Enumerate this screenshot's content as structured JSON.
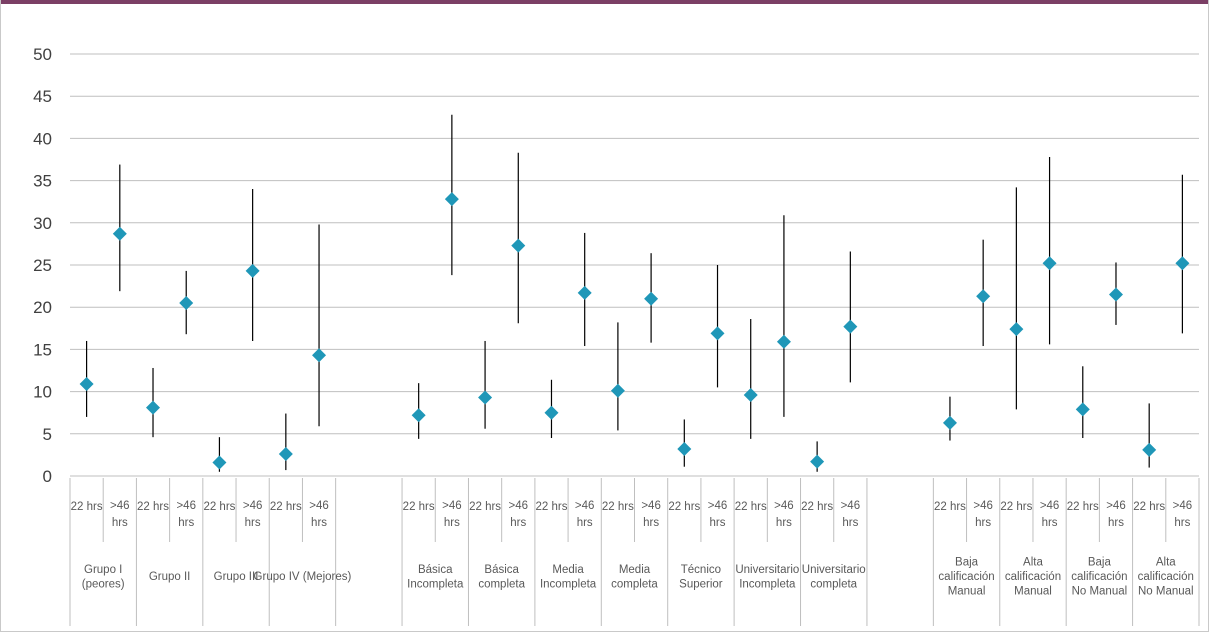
{
  "colors": {
    "marker": "#1f97b8",
    "bar": "#000000",
    "grid": "#bfbfbf",
    "top_bar": "#7b3f65"
  },
  "chart_data": {
    "type": "scatter",
    "marker_shape": "diamond",
    "error_bars": true,
    "grid": true,
    "ylim": [
      0,
      50
    ],
    "y_ticks": [
      "0",
      "5",
      "10",
      "15",
      "20",
      "25",
      "30",
      "35",
      "40",
      "45",
      "50"
    ],
    "categories": [
      {
        "label": [
          "Grupo I",
          "(peores)"
        ]
      },
      {
        "label": [
          "Grupo II"
        ]
      },
      {
        "label": [
          "Grupo III"
        ]
      },
      {
        "label": [
          "Grupo IV (Mejores)"
        ]
      },
      {
        "label": []
      },
      {
        "label": [
          "Básica",
          "Incompleta"
        ]
      },
      {
        "label": [
          "Básica",
          "completa"
        ]
      },
      {
        "label": [
          "Media",
          "Incompleta"
        ]
      },
      {
        "label": [
          "Media",
          "completa"
        ]
      },
      {
        "label": [
          "Técnico",
          "Superior"
        ]
      },
      {
        "label": [
          "Universitario",
          "Incompleta"
        ]
      },
      {
        "label": [
          "Universitario",
          "completa"
        ]
      },
      {
        "label": []
      },
      {
        "label": [
          "Baja",
          "calificación",
          "Manual"
        ]
      },
      {
        "label": [
          "Alta",
          "calificación",
          "Manual"
        ]
      },
      {
        "label": [
          "Baja",
          "calificación",
          "No Manual"
        ]
      },
      {
        "label": [
          "Alta",
          "calificación",
          "No Manual"
        ]
      }
    ],
    "sub_labels": [
      [
        "22 hrs"
      ],
      [
        ">46",
        "hrs"
      ]
    ],
    "points": [
      {
        "cat": 0,
        "sub": 0,
        "y": 10.9,
        "low": 7.0,
        "high": 16.0
      },
      {
        "cat": 0,
        "sub": 1,
        "y": 28.7,
        "low": 21.9,
        "high": 36.9
      },
      {
        "cat": 1,
        "sub": 0,
        "y": 8.1,
        "low": 4.6,
        "high": 12.8
      },
      {
        "cat": 1,
        "sub": 1,
        "y": 20.5,
        "low": 16.8,
        "high": 24.3
      },
      {
        "cat": 2,
        "sub": 0,
        "y": 1.6,
        "low": 0.5,
        "high": 4.6
      },
      {
        "cat": 2,
        "sub": 1,
        "y": 24.3,
        "low": 16.0,
        "high": 34.0
      },
      {
        "cat": 3,
        "sub": 0,
        "y": 2.6,
        "low": 0.7,
        "high": 7.4
      },
      {
        "cat": 3,
        "sub": 1,
        "y": 14.3,
        "low": 5.9,
        "high": 29.8
      },
      {
        "cat": 5,
        "sub": 0,
        "y": 7.2,
        "low": 4.4,
        "high": 11.0
      },
      {
        "cat": 5,
        "sub": 1,
        "y": 32.8,
        "low": 23.8,
        "high": 42.8
      },
      {
        "cat": 6,
        "sub": 0,
        "y": 9.3,
        "low": 5.6,
        "high": 16.0
      },
      {
        "cat": 6,
        "sub": 1,
        "y": 27.3,
        "low": 18.1,
        "high": 38.3
      },
      {
        "cat": 7,
        "sub": 0,
        "y": 7.5,
        "low": 4.5,
        "high": 11.4
      },
      {
        "cat": 7,
        "sub": 1,
        "y": 21.7,
        "low": 15.4,
        "high": 28.8
      },
      {
        "cat": 8,
        "sub": 0,
        "y": 10.1,
        "low": 5.4,
        "high": 18.2
      },
      {
        "cat": 8,
        "sub": 1,
        "y": 21.0,
        "low": 15.8,
        "high": 26.4
      },
      {
        "cat": 9,
        "sub": 0,
        "y": 3.2,
        "low": 1.1,
        "high": 6.7
      },
      {
        "cat": 9,
        "sub": 1,
        "y": 16.9,
        "low": 10.5,
        "high": 25.0
      },
      {
        "cat": 10,
        "sub": 0,
        "y": 9.6,
        "low": 4.4,
        "high": 18.6
      },
      {
        "cat": 10,
        "sub": 1,
        "y": 15.9,
        "low": 7.0,
        "high": 30.9
      },
      {
        "cat": 11,
        "sub": 0,
        "y": 1.7,
        "low": 0.5,
        "high": 4.1
      },
      {
        "cat": 11,
        "sub": 1,
        "y": 17.7,
        "low": 11.1,
        "high": 26.6
      },
      {
        "cat": 13,
        "sub": 0,
        "y": 6.3,
        "low": 4.2,
        "high": 9.4
      },
      {
        "cat": 13,
        "sub": 1,
        "y": 21.3,
        "low": 15.4,
        "high": 28.0
      },
      {
        "cat": 14,
        "sub": 0,
        "y": 17.4,
        "low": 7.9,
        "high": 34.2
      },
      {
        "cat": 14,
        "sub": 1,
        "y": 25.2,
        "low": 15.6,
        "high": 37.8
      },
      {
        "cat": 15,
        "sub": 0,
        "y": 7.9,
        "low": 4.5,
        "high": 13.0
      },
      {
        "cat": 15,
        "sub": 1,
        "y": 21.5,
        "low": 17.9,
        "high": 25.3
      },
      {
        "cat": 16,
        "sub": 0,
        "y": 3.1,
        "low": 1.0,
        "high": 8.6
      },
      {
        "cat": 16,
        "sub": 1,
        "y": 25.2,
        "low": 16.9,
        "high": 35.7
      }
    ]
  }
}
